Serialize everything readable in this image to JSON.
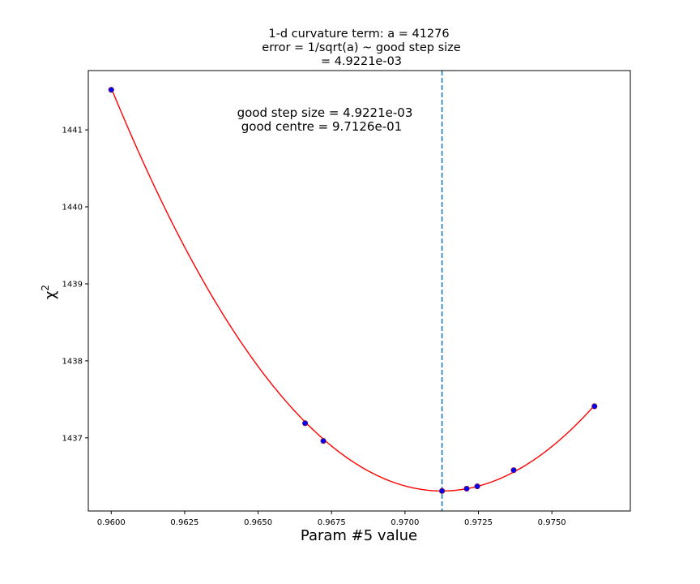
{
  "chart_data": {
    "type": "scatter",
    "title_lines": [
      "1-d curvature term: a = 41276",
      "error = 1/sqrt(a) ~ good step size",
      "= 4.9221e-03"
    ],
    "annotation_lines": [
      "good step size = 4.9221e-03",
      "good centre = 9.7126e-01"
    ],
    "xlabel": "Param #5 value",
    "ylabel_base": "χ",
    "ylabel_sup": "2",
    "xlim": [
      0.95922,
      0.97767
    ],
    "ylim": [
      1436.05,
      1441.77
    ],
    "x_ticks": [
      0.96,
      0.9625,
      0.965,
      0.9675,
      0.97,
      0.9725,
      0.975
    ],
    "x_tick_labels": [
      "0.9600",
      "0.9625",
      "0.9650",
      "0.9675",
      "0.9700",
      "0.9725",
      "0.9750"
    ],
    "y_ticks": [
      1437,
      1438,
      1439,
      1440,
      1441
    ],
    "y_tick_labels": [
      "1437",
      "1438",
      "1439",
      "1440",
      "1441"
    ],
    "grid": false,
    "points": {
      "x": [
        0.96,
        0.9666,
        0.96722,
        0.97126,
        0.9721,
        0.97246,
        0.9737,
        0.97645
      ],
      "y": [
        1441.52,
        1437.19,
        1436.96,
        1436.31,
        1436.34,
        1436.37,
        1436.58,
        1437.41
      ],
      "face_color": "#0000ff",
      "edge_color": "#8b1a3a"
    },
    "fit_curve": {
      "form": "a*(x - centre)^2 + min",
      "a": 41276,
      "centre": 0.97126,
      "min": 1436.31,
      "x_range": [
        0.96,
        0.97645
      ],
      "color": "#ff0000"
    },
    "vline": {
      "x": 0.97126,
      "style": "dashed",
      "color": "#1f77b4"
    }
  }
}
